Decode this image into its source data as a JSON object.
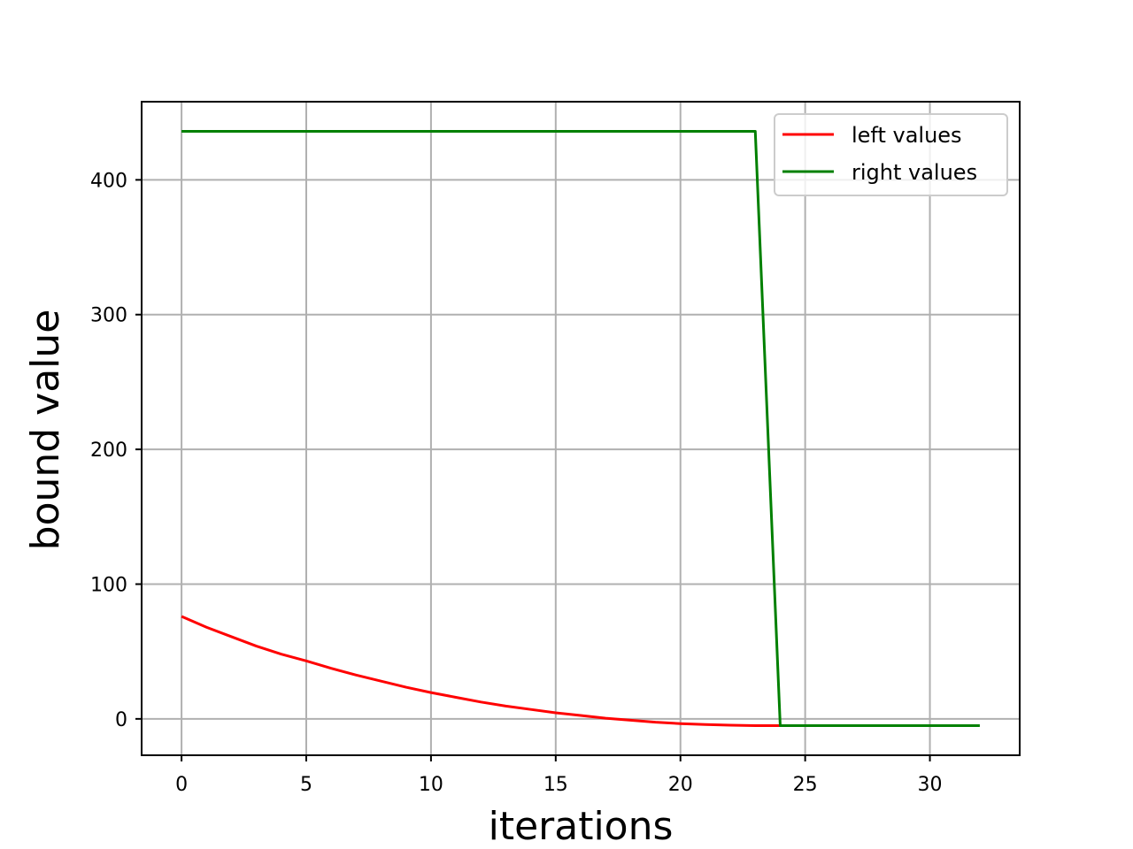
{
  "chart_data": {
    "type": "line",
    "title": "",
    "xlabel": "iterations",
    "ylabel": "bound value",
    "xlim": [
      -1.6,
      33.6
    ],
    "ylim": [
      -27,
      458
    ],
    "xticks": [
      0,
      5,
      10,
      15,
      20,
      25,
      30
    ],
    "yticks": [
      0,
      100,
      200,
      300,
      400
    ],
    "grid": true,
    "legend_position": "top-right",
    "series": [
      {
        "name": "left values",
        "color": "#ff0000",
        "x": [
          0,
          1,
          2,
          3,
          4,
          5,
          6,
          7,
          8,
          9,
          10,
          11,
          12,
          13,
          14,
          15,
          16,
          17,
          18,
          19,
          20,
          21,
          22,
          23,
          24
        ],
        "y": [
          76,
          68,
          61,
          54,
          48,
          43,
          37.5,
          32.5,
          28,
          23.5,
          19.5,
          16,
          12.5,
          9.5,
          7,
          4.5,
          2.5,
          0.5,
          -1,
          -2.5,
          -3.5,
          -4.2,
          -4.7,
          -5,
          -5
        ]
      },
      {
        "name": "right values",
        "color": "#008000",
        "x": [
          0,
          1,
          2,
          3,
          4,
          5,
          6,
          7,
          8,
          9,
          10,
          11,
          12,
          13,
          14,
          15,
          16,
          17,
          18,
          19,
          20,
          21,
          22,
          23,
          24,
          25,
          26,
          27,
          28,
          29,
          30,
          31,
          32
        ],
        "y": [
          436,
          436,
          436,
          436,
          436,
          436,
          436,
          436,
          436,
          436,
          436,
          436,
          436,
          436,
          436,
          436,
          436,
          436,
          436,
          436,
          436,
          436,
          436,
          436,
          -5,
          -5,
          -5,
          -5,
          -5,
          -5,
          -5,
          -5,
          -5
        ]
      }
    ]
  }
}
